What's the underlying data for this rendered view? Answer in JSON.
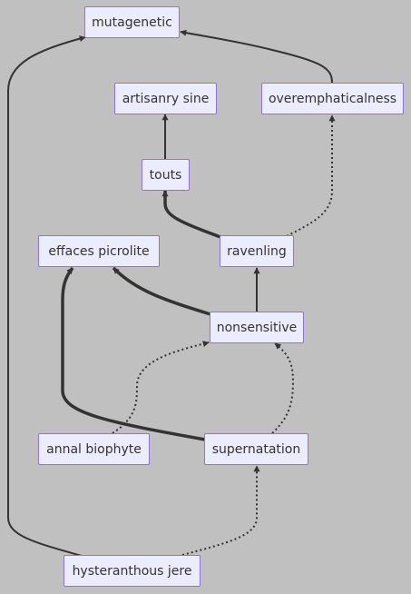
{
  "diagram": {
    "type": "flowchart",
    "colors": {
      "background": "#c0c0c0",
      "node_fill": "#ececff",
      "node_border": "#9370db",
      "text": "#333333",
      "edge": "#333333"
    },
    "nodes": [
      {
        "id": "mutagenetic",
        "label": "mutagenetic"
      },
      {
        "id": "artisanry",
        "label": "artisanry sine"
      },
      {
        "id": "overemph",
        "label": "overemphaticalness"
      },
      {
        "id": "touts",
        "label": "touts"
      },
      {
        "id": "effaces",
        "label": "effaces picrolite"
      },
      {
        "id": "ravenling",
        "label": "ravenling"
      },
      {
        "id": "nonsensitive",
        "label": "nonsensitive"
      },
      {
        "id": "annal",
        "label": "annal biophyte"
      },
      {
        "id": "supernatation",
        "label": "supernatation"
      },
      {
        "id": "hysteranthous",
        "label": "hysteranthous jere"
      }
    ],
    "edges": [
      {
        "from": "overemph",
        "to": "mutagenetic",
        "style": "solid"
      },
      {
        "from": "hysteranthous",
        "to": "mutagenetic",
        "style": "solid"
      },
      {
        "from": "touts",
        "to": "artisanry",
        "style": "solid"
      },
      {
        "from": "ravenling",
        "to": "overemph",
        "style": "dotted"
      },
      {
        "from": "ravenling",
        "to": "touts",
        "style": "thick"
      },
      {
        "from": "nonsensitive",
        "to": "ravenling",
        "style": "solid"
      },
      {
        "from": "nonsensitive",
        "to": "effaces",
        "style": "thick"
      },
      {
        "from": "supernatation",
        "to": "effaces",
        "style": "thick"
      },
      {
        "from": "annal",
        "to": "nonsensitive",
        "style": "dotted"
      },
      {
        "from": "supernatation",
        "to": "nonsensitive",
        "style": "dotted"
      },
      {
        "from": "hysteranthous",
        "to": "supernatation",
        "style": "dotted"
      }
    ]
  }
}
